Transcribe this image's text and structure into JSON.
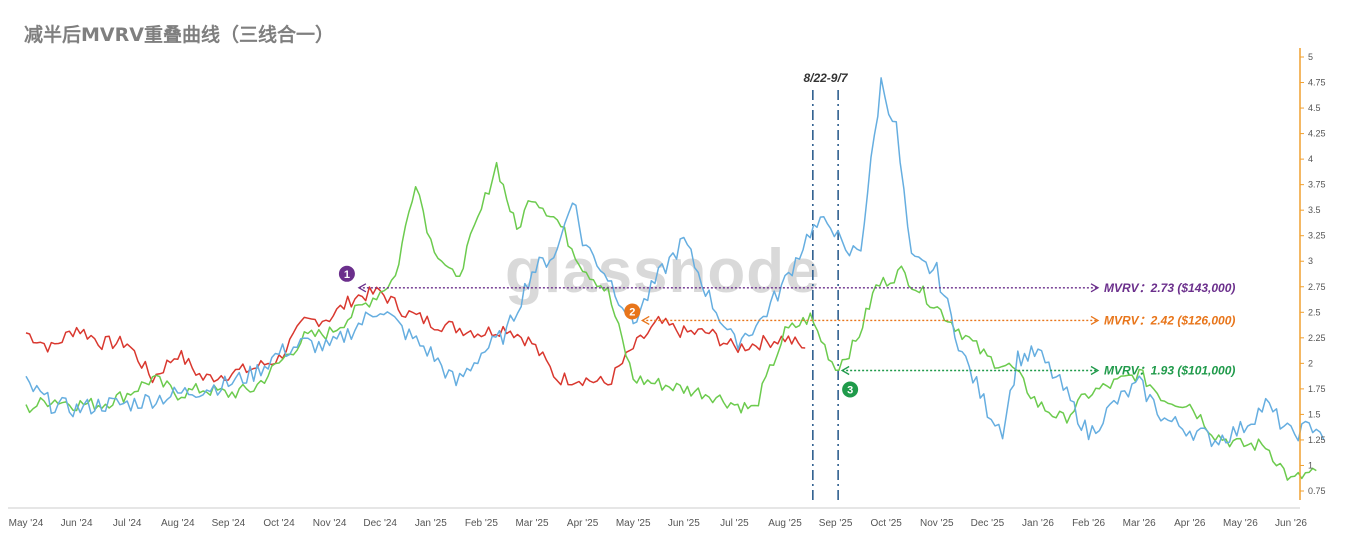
{
  "title": "减半后MVRV重叠曲线（三线合一）",
  "watermark": "glassnode",
  "colors": {
    "red": "#d9382f",
    "green": "#6ccb4e",
    "blue": "#66aee0",
    "purple": "#6b2f8c",
    "orange": "#e8751a",
    "darkgreen": "#1f9a4a",
    "axis": "#f0a030",
    "vline": "#2f5f8f"
  },
  "chart_data": {
    "type": "line",
    "x_labels": [
      "May '24",
      "Jun '24",
      "Jul '24",
      "Aug '24",
      "Sep '24",
      "Oct '24",
      "Nov '24",
      "Dec '24",
      "Jan '25",
      "Feb '25",
      "Mar '25",
      "Apr '25",
      "May '25",
      "Jun '25",
      "Jul '25",
      "Aug '25",
      "Sep '25",
      "Oct '25",
      "Nov '25",
      "Dec '25",
      "Jan '26",
      "Feb '26",
      "Mar '26",
      "Apr '26",
      "May '26",
      "Jun '26"
    ],
    "y_ticks": [
      "5",
      "4.75",
      "4.5",
      "4.25",
      "4",
      "3.75",
      "3.5",
      "3.25",
      "3",
      "2.75",
      "2.5",
      "2.25",
      "2",
      "1.75",
      "1.5",
      "1.25",
      "1",
      "0.75"
    ],
    "ylim": [
      0.6,
      5.05
    ],
    "series": [
      {
        "color": "red",
        "points": [
          [
            0,
            2.3
          ],
          [
            0.5,
            2.15
          ],
          [
            1,
            2.35
          ],
          [
            1.5,
            2.2
          ],
          [
            2,
            2.2
          ],
          [
            2.5,
            1.85
          ],
          [
            3,
            2.1
          ],
          [
            3.5,
            1.85
          ],
          [
            4,
            1.9
          ],
          [
            4.5,
            1.95
          ],
          [
            5,
            2.05
          ],
          [
            5.5,
            2.4
          ],
          [
            6,
            2.45
          ],
          [
            6.5,
            2.65
          ],
          [
            7,
            2.7
          ],
          [
            7.5,
            2.5
          ],
          [
            8,
            2.4
          ],
          [
            8.5,
            2.35
          ],
          [
            9,
            2.3
          ],
          [
            9.5,
            2.35
          ],
          [
            10,
            2.2
          ],
          [
            10.5,
            1.85
          ],
          [
            11,
            1.85
          ],
          [
            11.5,
            1.8
          ],
          [
            12,
            2.15
          ],
          [
            12.5,
            2.4
          ],
          [
            13,
            2.3
          ],
          [
            13.5,
            2.3
          ],
          [
            14,
            2.15
          ],
          [
            14.5,
            2.2
          ],
          [
            15,
            2.25
          ],
          [
            15.4,
            2.15
          ]
        ]
      },
      {
        "color": "green",
        "points": [
          [
            0,
            1.55
          ],
          [
            0.5,
            1.65
          ],
          [
            1,
            1.6
          ],
          [
            1.5,
            1.6
          ],
          [
            2,
            1.7
          ],
          [
            2.5,
            1.85
          ],
          [
            3,
            1.7
          ],
          [
            3.5,
            1.75
          ],
          [
            4,
            1.7
          ],
          [
            4.5,
            1.75
          ],
          [
            5,
            2.0
          ],
          [
            5.5,
            2.25
          ],
          [
            6,
            2.3
          ],
          [
            6.5,
            2.5
          ],
          [
            7,
            2.7
          ],
          [
            7.3,
            2.85
          ],
          [
            7.7,
            3.8
          ],
          [
            8,
            3.2
          ],
          [
            8.5,
            2.8
          ],
          [
            9,
            3.5
          ],
          [
            9.3,
            3.95
          ],
          [
            9.7,
            3.3
          ],
          [
            10,
            3.65
          ],
          [
            10.5,
            3.4
          ],
          [
            11,
            2.95
          ],
          [
            11.5,
            2.7
          ],
          [
            12,
            1.85
          ],
          [
            12.5,
            1.8
          ],
          [
            13,
            1.75
          ],
          [
            13.5,
            1.7
          ],
          [
            14,
            1.6
          ],
          [
            14.4,
            1.55
          ],
          [
            15,
            2.3
          ],
          [
            15.5,
            2.45
          ],
          [
            16,
            1.95
          ],
          [
            16.4,
            2.2
          ],
          [
            16.8,
            2.75
          ],
          [
            17.3,
            2.9
          ],
          [
            17.8,
            2.65
          ],
          [
            18.5,
            2.3
          ],
          [
            19,
            2.05
          ],
          [
            19.5,
            1.95
          ],
          [
            20,
            1.6
          ],
          [
            20.5,
            1.45
          ],
          [
            21,
            1.7
          ],
          [
            21.5,
            1.8
          ],
          [
            22,
            1.9
          ],
          [
            22.5,
            1.65
          ],
          [
            23,
            1.6
          ],
          [
            23.5,
            1.3
          ],
          [
            24,
            1.2
          ],
          [
            24.5,
            1.2
          ],
          [
            25,
            0.85
          ],
          [
            25.5,
            0.95
          ]
        ]
      },
      {
        "color": "blue",
        "points": [
          [
            0,
            1.8
          ],
          [
            0.5,
            1.6
          ],
          [
            1,
            1.55
          ],
          [
            1.5,
            1.6
          ],
          [
            2,
            1.6
          ],
          [
            2.5,
            1.65
          ],
          [
            3,
            1.7
          ],
          [
            3.5,
            1.75
          ],
          [
            4,
            1.8
          ],
          [
            4.5,
            1.9
          ],
          [
            5,
            2.1
          ],
          [
            5.5,
            2.2
          ],
          [
            6,
            2.15
          ],
          [
            6.5,
            2.35
          ],
          [
            7,
            2.55
          ],
          [
            7.5,
            2.3
          ],
          [
            8,
            2.1
          ],
          [
            8.5,
            1.8
          ],
          [
            9,
            2.1
          ],
          [
            9.5,
            2.3
          ],
          [
            10,
            2.9
          ],
          [
            10.5,
            3.1
          ],
          [
            10.8,
            3.65
          ],
          [
            11,
            3.2
          ],
          [
            11.5,
            2.85
          ],
          [
            12,
            2.4
          ],
          [
            12.5,
            2.85
          ],
          [
            13,
            3.2
          ],
          [
            13.5,
            2.65
          ],
          [
            14,
            2.2
          ],
          [
            14.5,
            2.4
          ],
          [
            15,
            2.8
          ],
          [
            15.5,
            3.3
          ],
          [
            15.9,
            3.4
          ],
          [
            16.2,
            3.05
          ],
          [
            16.5,
            3.15
          ],
          [
            16.9,
            4.75
          ],
          [
            17.2,
            4.3
          ],
          [
            17.5,
            3.0
          ],
          [
            18,
            2.9
          ],
          [
            18.5,
            2.1
          ],
          [
            19,
            1.55
          ],
          [
            19.3,
            1.35
          ],
          [
            19.6,
            2.05
          ],
          [
            20,
            2.1
          ],
          [
            20.5,
            1.75
          ],
          [
            21,
            1.3
          ],
          [
            21.5,
            1.6
          ],
          [
            22,
            1.8
          ],
          [
            22.5,
            1.45
          ],
          [
            23,
            1.35
          ],
          [
            23.5,
            1.25
          ],
          [
            24,
            1.35
          ],
          [
            24.5,
            1.6
          ],
          [
            25,
            1.3
          ],
          [
            25.5,
            1.4
          ],
          [
            25.65,
            1.25
          ]
        ]
      }
    ],
    "vlines": [
      15.55,
      16.05
    ],
    "vline_label": "8/22-9/7",
    "annotations": [
      {
        "marker": "1",
        "color": "purple",
        "x": 6.5,
        "y": 2.74,
        "label": "MVRV：2.73 ($143,000)"
      },
      {
        "marker": "2",
        "color": "orange",
        "x": 12.1,
        "y": 2.42,
        "label": "MVRV：2.42 ($126,000)"
      },
      {
        "marker": "3",
        "color": "darkgreen",
        "x": 16.05,
        "y": 1.93,
        "label": "MVRV：1.93 ($101,000)"
      }
    ]
  }
}
